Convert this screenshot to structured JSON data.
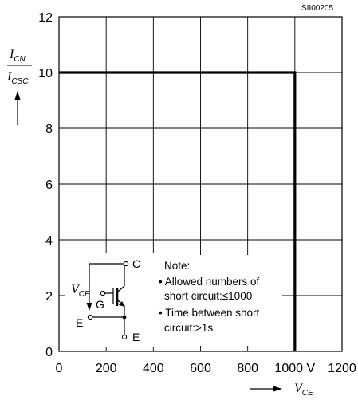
{
  "figure_code": "SII00205",
  "chart_data": {
    "type": "line",
    "xlabel": {
      "symbol": "V",
      "subscript": "CE"
    },
    "ylabel": {
      "numerator_symbol": "I",
      "numerator_subscript": "CN",
      "denominator_symbol": "I",
      "denominator_subscript": "CSC"
    },
    "xlim": [
      0,
      1200
    ],
    "ylim": [
      0,
      12
    ],
    "x_ticks": [
      "0",
      "200",
      "400",
      "600",
      "800",
      "1000 V",
      "1200"
    ],
    "y_ticks": [
      "0",
      "2",
      "4",
      "6",
      "8",
      "10",
      "12"
    ],
    "x_tick_values": [
      0,
      200,
      400,
      600,
      800,
      1000,
      1200
    ],
    "y_tick_values": [
      0,
      2,
      4,
      6,
      8,
      10,
      12
    ],
    "grid": true,
    "series": [
      {
        "x": [
          0,
          1000,
          1000
        ],
        "y": [
          10,
          10,
          0
        ]
      }
    ]
  },
  "note": {
    "title": "Note:",
    "lines": [
      "• Allowed numbers of",
      "short circuit:≤1000",
      "• Time between short",
      "circuit:>1s"
    ]
  },
  "schematic": {
    "collector_label": "C",
    "gate_label": "G",
    "emitter_left_label": "E",
    "emitter_right_label": "E",
    "vce_symbol": "V",
    "vce_subscript": "CE"
  }
}
